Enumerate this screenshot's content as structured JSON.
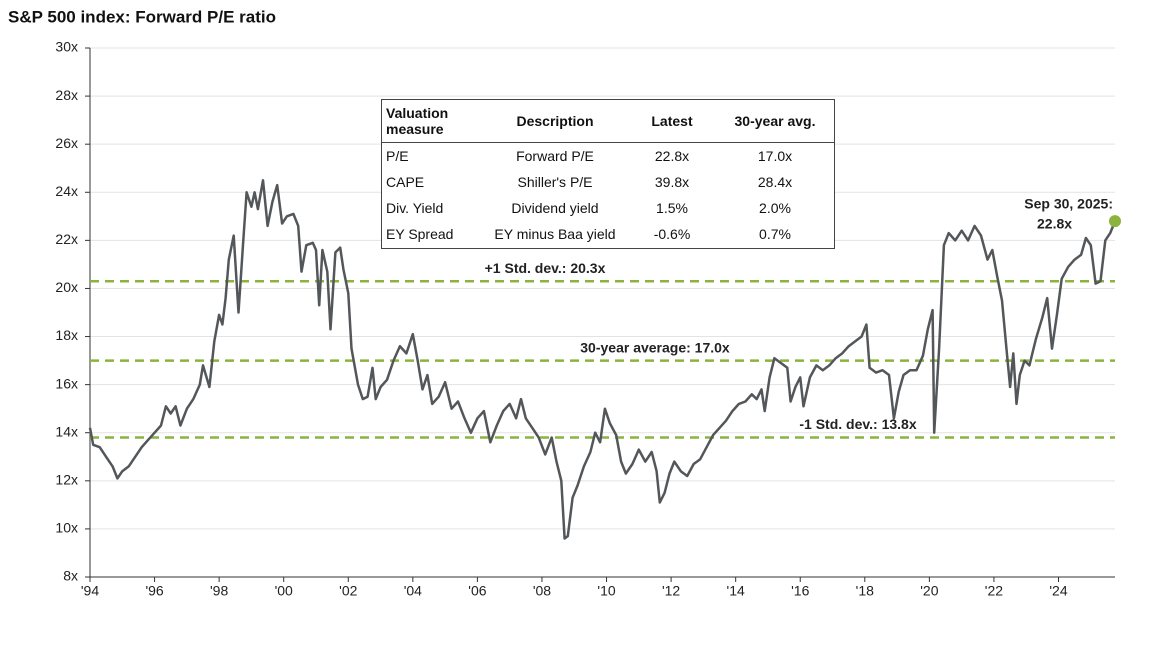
{
  "chart_data": {
    "type": "line",
    "title": "S&P 500 index: Forward P/E ratio",
    "xlim": [
      1994,
      2025.75
    ],
    "xticks": [
      {
        "value": 1994,
        "label": "'94"
      },
      {
        "value": 1996,
        "label": "'96"
      },
      {
        "value": 1998,
        "label": "'98"
      },
      {
        "value": 2000,
        "label": "'00"
      },
      {
        "value": 2002,
        "label": "'02"
      },
      {
        "value": 2004,
        "label": "'04"
      },
      {
        "value": 2006,
        "label": "'06"
      },
      {
        "value": 2008,
        "label": "'08"
      },
      {
        "value": 2010,
        "label": "'10"
      },
      {
        "value": 2012,
        "label": "'12"
      },
      {
        "value": 2014,
        "label": "'14"
      },
      {
        "value": 2016,
        "label": "'16"
      },
      {
        "value": 2018,
        "label": "'18"
      },
      {
        "value": 2020,
        "label": "'20"
      },
      {
        "value": 2022,
        "label": "'22"
      },
      {
        "value": 2024,
        "label": "'24"
      }
    ],
    "ylim": [
      8,
      30
    ],
    "yticks": [
      {
        "value": 8,
        "label": "8x"
      },
      {
        "value": 10,
        "label": "10x"
      },
      {
        "value": 12,
        "label": "12x"
      },
      {
        "value": 14,
        "label": "14x"
      },
      {
        "value": 16,
        "label": "16x"
      },
      {
        "value": 18,
        "label": "18x"
      },
      {
        "value": 20,
        "label": "20x"
      },
      {
        "value": 22,
        "label": "22x"
      },
      {
        "value": 24,
        "label": "24x"
      },
      {
        "value": 26,
        "label": "26x"
      },
      {
        "value": 28,
        "label": "28x"
      },
      {
        "value": 30,
        "label": "30x"
      }
    ],
    "grid": true,
    "color": "#54575a",
    "reference_color": "#8cb33e",
    "x": [
      1994.0,
      1994.1,
      1994.3,
      1994.5,
      1994.7,
      1994.85,
      1995.0,
      1995.2,
      1995.4,
      1995.6,
      1995.8,
      1996.0,
      1996.2,
      1996.35,
      1996.5,
      1996.65,
      1996.8,
      1997.0,
      1997.2,
      1997.4,
      1997.5,
      1997.7,
      1997.85,
      1998.0,
      1998.1,
      1998.2,
      1998.3,
      1998.45,
      1998.6,
      1998.75,
      1998.85,
      1999.0,
      1999.1,
      1999.2,
      1999.36,
      1999.5,
      1999.65,
      1999.8,
      1999.95,
      2000.1,
      2000.3,
      2000.45,
      2000.55,
      2000.7,
      2000.9,
      2001.0,
      2001.1,
      2001.2,
      2001.35,
      2001.45,
      2001.6,
      2001.75,
      2001.85,
      2002.0,
      2002.1,
      2002.3,
      2002.45,
      2002.6,
      2002.75,
      2002.85,
      2003.0,
      2003.2,
      2003.4,
      2003.6,
      2003.8,
      2004.0,
      2004.15,
      2004.3,
      2004.45,
      2004.6,
      2004.8,
      2005.0,
      2005.2,
      2005.4,
      2005.6,
      2005.8,
      2006.0,
      2006.2,
      2006.4,
      2006.6,
      2006.8,
      2007.0,
      2007.2,
      2007.35,
      2007.5,
      2007.7,
      2007.9,
      2008.1,
      2008.3,
      2008.45,
      2008.6,
      2008.7,
      2008.8,
      2008.95,
      2009.1,
      2009.3,
      2009.5,
      2009.65,
      2009.8,
      2009.95,
      2010.1,
      2010.3,
      2010.45,
      2010.6,
      2010.8,
      2011.0,
      2011.2,
      2011.4,
      2011.55,
      2011.65,
      2011.8,
      2011.95,
      2012.1,
      2012.3,
      2012.5,
      2012.7,
      2012.9,
      2013.1,
      2013.3,
      2013.5,
      2013.7,
      2013.9,
      2014.1,
      2014.3,
      2014.5,
      2014.65,
      2014.8,
      2014.9,
      2015.05,
      2015.2,
      2015.4,
      2015.6,
      2015.7,
      2015.85,
      2016.0,
      2016.1,
      2016.3,
      2016.5,
      2016.7,
      2016.9,
      2017.1,
      2017.3,
      2017.5,
      2017.7,
      2017.9,
      2018.05,
      2018.15,
      2018.35,
      2018.55,
      2018.75,
      2018.9,
      2019.05,
      2019.2,
      2019.4,
      2019.6,
      2019.8,
      2019.95,
      2020.1,
      2020.15,
      2020.3,
      2020.45,
      2020.6,
      2020.8,
      2021.0,
      2021.2,
      2021.4,
      2021.6,
      2021.8,
      2021.95,
      2022.1,
      2022.25,
      2022.4,
      2022.5,
      2022.6,
      2022.7,
      2022.8,
      2022.95,
      2023.1,
      2023.3,
      2023.5,
      2023.65,
      2023.8,
      2023.95,
      2024.1,
      2024.3,
      2024.5,
      2024.7,
      2024.85,
      2025.0,
      2025.15,
      2025.3,
      2025.45,
      2025.6,
      2025.75
    ],
    "values": [
      14.2,
      13.5,
      13.4,
      13.0,
      12.6,
      12.1,
      12.4,
      12.6,
      13.0,
      13.4,
      13.7,
      14.0,
      14.3,
      15.1,
      14.8,
      15.1,
      14.3,
      15.0,
      15.4,
      16.0,
      16.8,
      15.9,
      17.8,
      18.9,
      18.5,
      19.6,
      21.2,
      22.2,
      19.0,
      22.0,
      24.0,
      23.4,
      24.0,
      23.3,
      24.5,
      22.6,
      23.6,
      24.3,
      22.7,
      23.0,
      23.1,
      22.6,
      20.7,
      21.8,
      21.9,
      21.6,
      19.3,
      21.6,
      20.7,
      18.3,
      21.5,
      21.7,
      20.8,
      19.8,
      17.5,
      16.0,
      15.4,
      15.5,
      16.7,
      15.4,
      15.9,
      16.2,
      17.0,
      17.6,
      17.3,
      18.1,
      17.0,
      15.8,
      16.4,
      15.2,
      15.5,
      16.1,
      15.0,
      15.3,
      14.6,
      14.0,
      14.6,
      14.9,
      13.6,
      14.3,
      14.9,
      15.2,
      14.6,
      15.4,
      14.6,
      14.2,
      13.8,
      13.1,
      13.8,
      12.8,
      12.0,
      9.6,
      9.7,
      11.3,
      11.8,
      12.6,
      13.2,
      14.0,
      13.6,
      15.0,
      14.4,
      13.9,
      12.8,
      12.3,
      12.7,
      13.3,
      12.8,
      13.2,
      12.4,
      11.1,
      11.5,
      12.3,
      12.8,
      12.4,
      12.2,
      12.7,
      12.9,
      13.4,
      13.9,
      14.2,
      14.5,
      14.9,
      15.2,
      15.3,
      15.6,
      15.4,
      15.8,
      14.9,
      16.3,
      17.1,
      16.9,
      16.7,
      15.3,
      15.9,
      16.3,
      15.1,
      16.3,
      16.8,
      16.6,
      16.8,
      17.1,
      17.3,
      17.6,
      17.8,
      18.0,
      18.5,
      16.7,
      16.5,
      16.6,
      16.4,
      14.6,
      15.7,
      16.4,
      16.6,
      16.6,
      17.2,
      18.3,
      19.1,
      14.0,
      17.5,
      21.8,
      22.3,
      22.0,
      22.4,
      22.0,
      22.6,
      22.2,
      21.2,
      21.6,
      20.5,
      19.5,
      17.3,
      15.9,
      17.3,
      15.2,
      16.4,
      17.0,
      16.8,
      17.9,
      18.8,
      19.6,
      17.5,
      18.9,
      20.4,
      20.9,
      21.2,
      21.4,
      22.1,
      21.8,
      20.2,
      20.3,
      22.0,
      22.3,
      22.8
    ],
    "reference_lines": [
      {
        "value": 20.3,
        "label": "+1 Std. dev.: 20.3x"
      },
      {
        "value": 17.0,
        "label": "30-year average: 17.0x"
      },
      {
        "value": 13.8,
        "label": "-1 Std. dev.: 13.8x"
      }
    ],
    "annotation": [
      "Sep 30, 2025:",
      "22.8x"
    ],
    "table": {
      "header": [
        "Valuation measure",
        "Description",
        "Latest",
        "30-year avg."
      ],
      "rows": [
        [
          "P/E",
          "Forward P/E",
          "22.8x",
          "17.0x"
        ],
        [
          "CAPE",
          "Shiller's P/E",
          "39.8x",
          "28.4x"
        ],
        [
          "Div. Yield",
          "Dividend yield",
          "1.5%",
          "2.0%"
        ],
        [
          "EY Spread",
          "EY minus Baa yield",
          "-0.6%",
          "0.7%"
        ]
      ]
    }
  }
}
